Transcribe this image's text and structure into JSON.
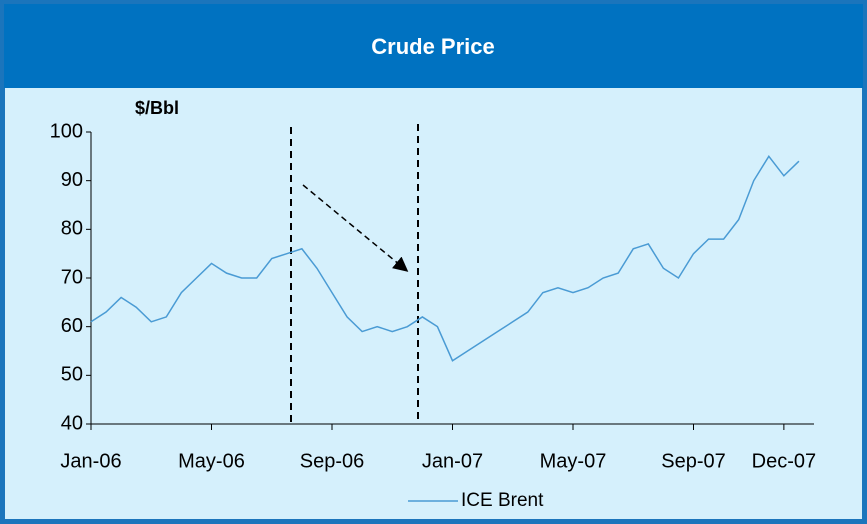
{
  "chart_data": {
    "type": "line",
    "title": "Crude Price",
    "y_label": "$/Bbl",
    "categories": [
      "Jan-06",
      null,
      null,
      null,
      null,
      null,
      null,
      null,
      "May-06",
      null,
      null,
      null,
      null,
      null,
      null,
      null,
      "Sep-06",
      null,
      null,
      null,
      null,
      null,
      null,
      null,
      "Jan-07",
      null,
      null,
      null,
      null,
      null,
      null,
      null,
      "May-07",
      null,
      null,
      null,
      null,
      null,
      null,
      null,
      "Sep-07",
      null,
      null,
      null,
      null,
      null,
      "Dec-07",
      null
    ],
    "series": [
      {
        "name": "ICE Brent",
        "color": "#4a9bd4",
        "values": [
          61,
          63,
          66,
          64,
          61,
          62,
          67,
          70,
          73,
          71,
          70,
          70,
          74,
          75,
          76,
          72,
          67,
          62,
          59,
          60,
          59,
          60,
          62,
          60,
          53,
          55,
          57,
          59,
          61,
          63,
          67,
          68,
          67,
          68,
          70,
          71,
          76,
          77,
          72,
          70,
          75,
          78,
          78,
          82,
          90,
          95,
          91,
          94
        ]
      }
    ],
    "ylim": [
      40,
      100
    ],
    "yticks": [
      40,
      50,
      60,
      70,
      80,
      90,
      100
    ]
  }
}
